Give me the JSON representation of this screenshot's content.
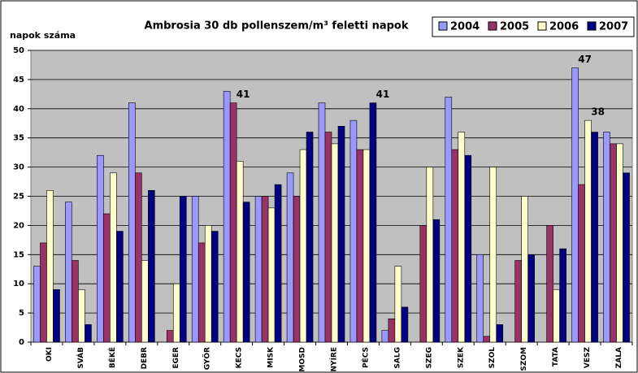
{
  "chart_data": {
    "type": "bar",
    "title": "Ambrosia 30 db pollenszem/m³ feletti napok",
    "ylabel": "napok száma",
    "categories": [
      "OKI",
      "SVÁB",
      "BÉKÉ",
      "DEBR",
      "EGER",
      "GYŐR",
      "KECS",
      "MISK",
      "MOSD",
      "NYÍRE",
      "PÉCS",
      "SALG",
      "SZEG",
      "SZEK",
      "SZOL",
      "SZOM",
      "TATA",
      "VESZ",
      "ZALA"
    ],
    "series": [
      {
        "name": "2004",
        "color": "#9999ff",
        "values": [
          13,
          24,
          32,
          41,
          0,
          25,
          43,
          25,
          29,
          41,
          38,
          2,
          0,
          42,
          15,
          0,
          0,
          47,
          36
        ],
        "value_labels": [
          null,
          null,
          null,
          null,
          null,
          null,
          null,
          null,
          null,
          null,
          null,
          null,
          null,
          null,
          null,
          null,
          null,
          "47",
          null
        ]
      },
      {
        "name": "2005",
        "color": "#993366",
        "values": [
          17,
          14,
          22,
          29,
          2,
          17,
          41,
          25,
          25,
          36,
          33,
          4,
          20,
          33,
          1,
          14,
          20,
          27,
          34
        ],
        "value_labels": [
          null,
          null,
          null,
          null,
          null,
          null,
          "41",
          null,
          null,
          null,
          null,
          null,
          null,
          null,
          null,
          null,
          null,
          null,
          null
        ]
      },
      {
        "name": "2006",
        "color": "#ffffcc",
        "values": [
          26,
          9,
          29,
          14,
          10,
          20,
          31,
          23,
          33,
          34,
          33,
          13,
          30,
          36,
          30,
          25,
          9,
          38,
          34
        ],
        "value_labels": [
          null,
          null,
          null,
          null,
          null,
          null,
          null,
          null,
          null,
          null,
          null,
          null,
          null,
          null,
          null,
          null,
          null,
          "38",
          null
        ]
      },
      {
        "name": "2007",
        "color": "#000080",
        "values": [
          9,
          3,
          19,
          26,
          25,
          19,
          24,
          27,
          36,
          37,
          41,
          6,
          21,
          32,
          3,
          15,
          16,
          36,
          29
        ],
        "value_labels": [
          null,
          null,
          null,
          null,
          null,
          null,
          null,
          null,
          null,
          null,
          "41",
          null,
          null,
          null,
          null,
          null,
          null,
          null,
          null
        ]
      }
    ],
    "ylim": [
      0,
      50
    ],
    "yticks": [
      0,
      5,
      10,
      15,
      20,
      25,
      30,
      35,
      40,
      45,
      50
    ],
    "grid": true
  }
}
